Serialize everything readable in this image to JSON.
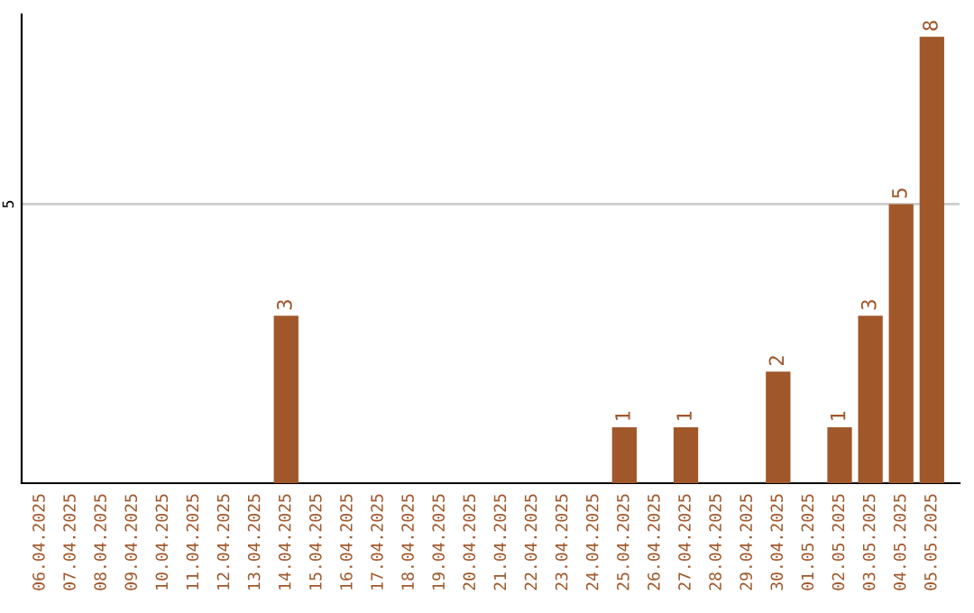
{
  "chart_data": {
    "type": "bar",
    "categories": [
      "06.04.2025",
      "07.04.2025",
      "08.04.2025",
      "09.04.2025",
      "10.04.2025",
      "11.04.2025",
      "12.04.2025",
      "13.04.2025",
      "14.04.2025",
      "15.04.2025",
      "16.04.2025",
      "17.04.2025",
      "18.04.2025",
      "19.04.2025",
      "20.04.2025",
      "21.04.2025",
      "22.04.2025",
      "23.04.2025",
      "24.04.2025",
      "25.04.2025",
      "26.04.2025",
      "27.04.2025",
      "28.04.2025",
      "29.04.2025",
      "30.04.2025",
      "01.05.2025",
      "02.05.2025",
      "03.05.2025",
      "04.05.2025",
      "05.05.2025"
    ],
    "values": [
      0,
      0,
      0,
      0,
      0,
      0,
      0,
      0,
      3,
      0,
      0,
      0,
      0,
      0,
      0,
      0,
      0,
      0,
      0,
      1,
      0,
      1,
      0,
      0,
      2,
      0,
      1,
      3,
      5,
      8
    ],
    "value_labels": [
      null,
      null,
      null,
      null,
      null,
      null,
      null,
      null,
      "3",
      null,
      null,
      null,
      null,
      null,
      null,
      null,
      null,
      null,
      null,
      "1",
      null,
      "1",
      null,
      null,
      "2",
      null,
      "1",
      "3",
      "5",
      "8"
    ],
    "color": "#a0572a",
    "ylim": [
      0,
      8.4
    ],
    "yticks": [
      5
    ],
    "grid": "y",
    "legend": false
  }
}
